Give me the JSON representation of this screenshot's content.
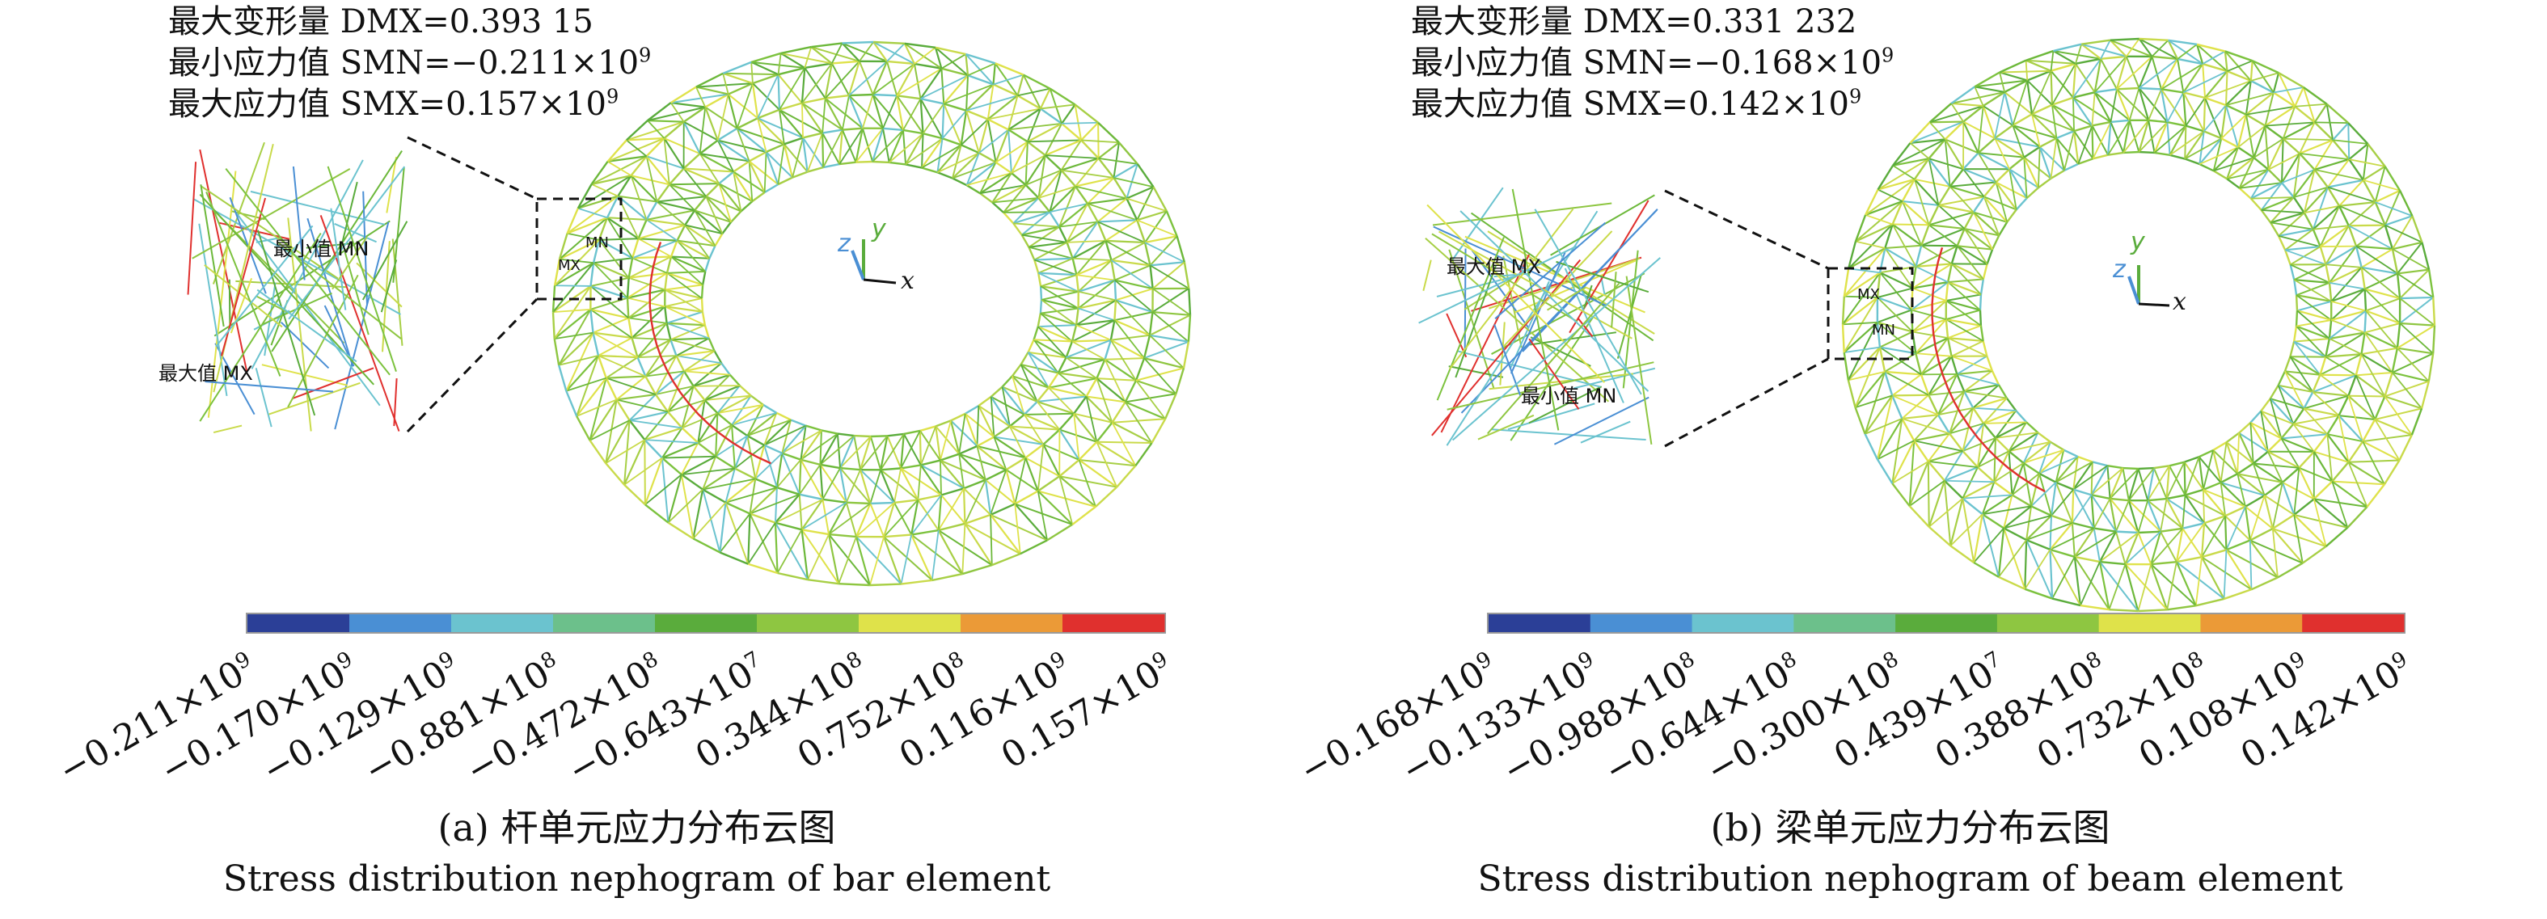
{
  "figure": {
    "panels": [
      {
        "id": "a",
        "stats": {
          "line1_prefix": "最大变形量 DMX=0.393 15",
          "line2_prefix": "最小应力值 SMN=−0.211×10",
          "line2_exp": "9",
          "line3_prefix": "最大应力值 SMX=0.157×10",
          "line3_exp": "9"
        },
        "zoom": {
          "min_label": "最小值 MN",
          "max_label": "最大值 MX"
        },
        "marker": {
          "mn": "MN",
          "mx": "MX"
        },
        "axes": {
          "x": "x",
          "y": "y",
          "z": "z"
        },
        "caption_cn": "(a) 杆单元应力分布云图",
        "caption_en": "Stress distribution nephogram of bar element"
      },
      {
        "id": "b",
        "stats": {
          "line1_prefix": "最大变形量 DMX=0.331 232",
          "line2_prefix": "最小应力值 SMN=−0.168×10",
          "line2_exp": "9",
          "line3_prefix": "最大应力值 SMX=0.142×10",
          "line3_exp": "9"
        },
        "zoom": {
          "min_label": "最小值 MN",
          "max_label": "最大值 MX"
        },
        "marker": {
          "mn": "MN",
          "mx": "MX"
        },
        "axes": {
          "x": "x",
          "y": "y",
          "z": "z"
        },
        "caption_cn": "(b) 梁单元应力分布云图",
        "caption_en": "Stress distribution nephogram of beam element"
      }
    ]
  },
  "chart_data": [
    {
      "type": "heatmap",
      "title": "(a) 杆单元应力分布云图",
      "colorbar_colors": [
        "#2b3f97",
        "#4a8fd4",
        "#6bc3cf",
        "#6cc08b",
        "#5aac3c",
        "#8ec641",
        "#dfe24a",
        "#eb9a37",
        "#e0302e"
      ],
      "tick_mantissa": [
        "−0.211×10",
        "−0.170×10",
        "−0.129×10",
        "−0.881×10",
        "−0.472×10",
        "−0.643×10",
        "0.344×10",
        "0.752×10",
        "0.116×10",
        "0.157×10"
      ],
      "tick_exp": [
        "9",
        "9",
        "9",
        "8",
        "8",
        "7",
        "8",
        "8",
        "9",
        "9"
      ],
      "tick_values": [
        -211000000,
        -170000000,
        -129000000,
        -88100000,
        -47200000,
        -6430000,
        34400000,
        75200000,
        116000000,
        157000000
      ]
    },
    {
      "type": "heatmap",
      "title": "(b) 梁单元应力分布云图",
      "colorbar_colors": [
        "#2b3f97",
        "#4a8fd4",
        "#6bc3cf",
        "#6cc08b",
        "#5aac3c",
        "#8ec641",
        "#dfe24a",
        "#eb9a37",
        "#e0302e"
      ],
      "tick_mantissa": [
        "−0.168×10",
        "−0.133×10",
        "−0.988×10",
        "−0.644×10",
        "−0.300×10",
        "0.439×10",
        "0.388×10",
        "0.732×10",
        "0.108×10",
        "0.142×10"
      ],
      "tick_exp": [
        "9",
        "9",
        "8",
        "8",
        "8",
        "7",
        "8",
        "8",
        "9",
        "9"
      ],
      "tick_values": [
        -168000000,
        -133000000,
        -98800000,
        -64400000,
        -30000000,
        4390000,
        38800000,
        73200000,
        108000000,
        142000000
      ]
    }
  ]
}
